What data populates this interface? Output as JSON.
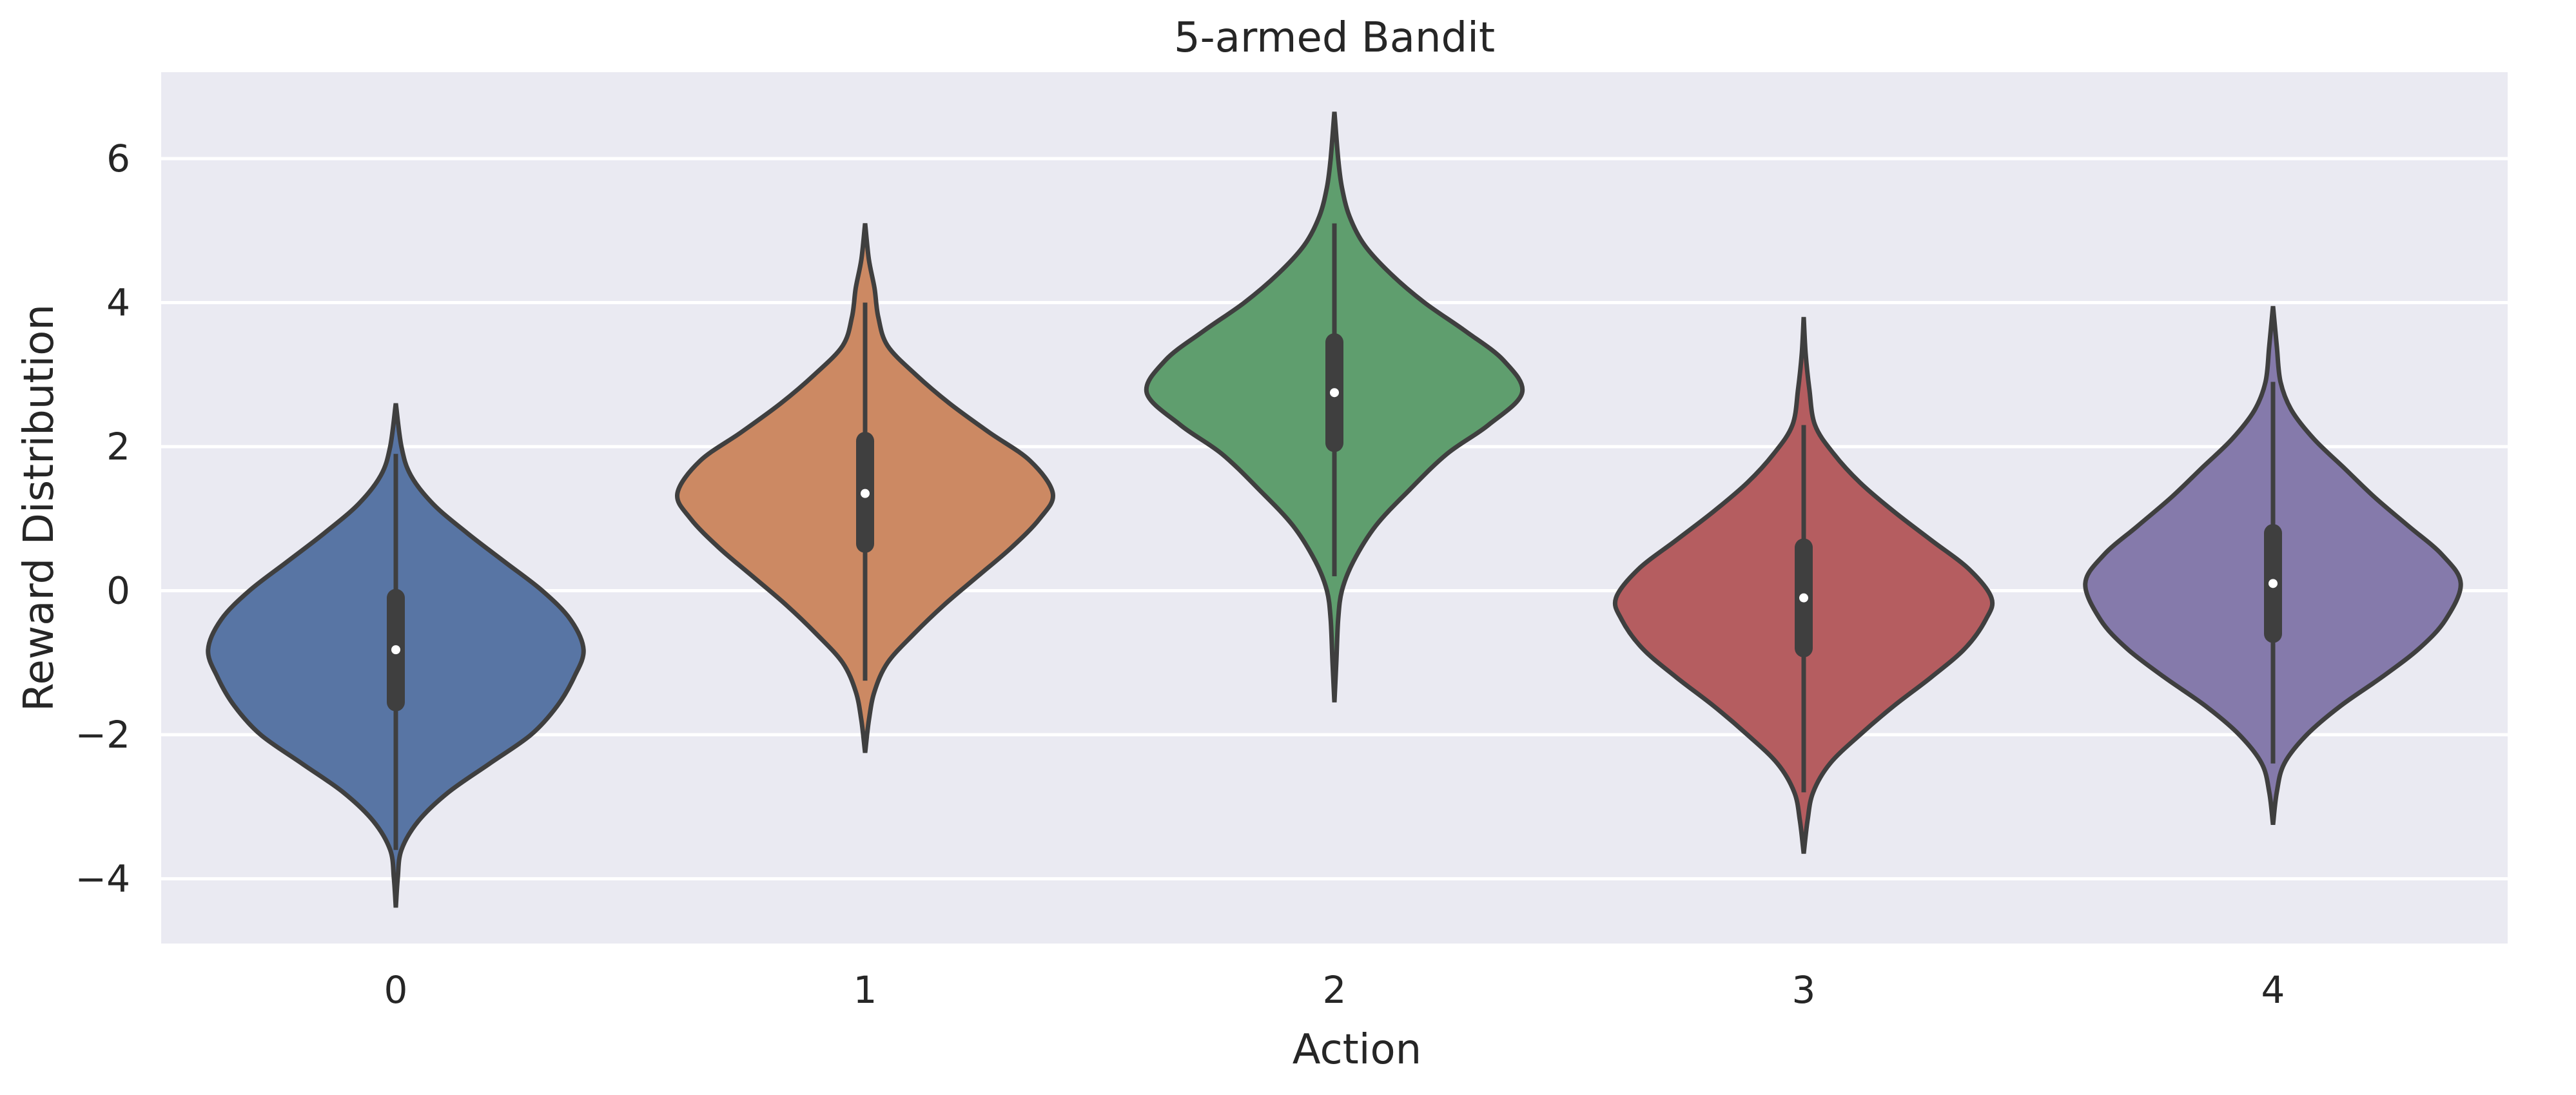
{
  "chart_data": {
    "type": "violin",
    "title": "5-armed Bandit",
    "xlabel": "Action",
    "ylabel": "Reward Distribution",
    "categories": [
      "0",
      "1",
      "2",
      "3",
      "4"
    ],
    "ylim": [
      -4.9,
      7.2
    ],
    "yticks": [
      -4,
      -2,
      0,
      2,
      4,
      6
    ],
    "ytick_labels": [
      "−4",
      "−2",
      "0",
      "2",
      "4",
      "6"
    ],
    "grid": true,
    "background_color": "#eaeaf2",
    "colors": [
      "#5875a4",
      "#cc8963",
      "#5f9e6e",
      "#b55d60",
      "#857aab"
    ],
    "series": [
      {
        "category": "0",
        "min": -4.4,
        "q1": -1.55,
        "median": -0.82,
        "q3": -0.1,
        "max": 2.6,
        "whisker_low": -3.6,
        "whisker_high": 1.9,
        "density": [
          [
            -4.4,
            0.0
          ],
          [
            -4.0,
            0.01
          ],
          [
            -3.6,
            0.03
          ],
          [
            -3.2,
            0.12
          ],
          [
            -2.8,
            0.28
          ],
          [
            -2.4,
            0.5
          ],
          [
            -2.0,
            0.72
          ],
          [
            -1.6,
            0.86
          ],
          [
            -1.2,
            0.95
          ],
          [
            -0.82,
            1.0
          ],
          [
            -0.4,
            0.93
          ],
          [
            0.0,
            0.78
          ],
          [
            0.4,
            0.58
          ],
          [
            0.8,
            0.38
          ],
          [
            1.2,
            0.2
          ],
          [
            1.6,
            0.08
          ],
          [
            2.0,
            0.03
          ],
          [
            2.6,
            0.0
          ]
        ]
      },
      {
        "category": "1",
        "min": -2.25,
        "q1": 0.65,
        "median": 1.35,
        "q3": 2.08,
        "max": 5.1,
        "whisker_low": -1.25,
        "whisker_high": 4.0,
        "density": [
          [
            -2.25,
            0.0
          ],
          [
            -1.8,
            0.02
          ],
          [
            -1.4,
            0.05
          ],
          [
            -1.0,
            0.12
          ],
          [
            -0.6,
            0.26
          ],
          [
            -0.2,
            0.42
          ],
          [
            0.2,
            0.6
          ],
          [
            0.6,
            0.78
          ],
          [
            1.0,
            0.93
          ],
          [
            1.35,
            1.0
          ],
          [
            1.8,
            0.88
          ],
          [
            2.2,
            0.66
          ],
          [
            2.6,
            0.45
          ],
          [
            3.0,
            0.27
          ],
          [
            3.4,
            0.12
          ],
          [
            3.8,
            0.07
          ],
          [
            4.2,
            0.05
          ],
          [
            4.6,
            0.02
          ],
          [
            5.1,
            0.0
          ]
        ]
      },
      {
        "category": "2",
        "min": -1.55,
        "q1": 2.05,
        "median": 2.75,
        "q3": 3.45,
        "max": 6.65,
        "whisker_low": 0.2,
        "whisker_high": 5.1,
        "density": [
          [
            -1.55,
            0.0
          ],
          [
            -1.0,
            0.01
          ],
          [
            -0.4,
            0.02
          ],
          [
            0.0,
            0.04
          ],
          [
            0.4,
            0.1
          ],
          [
            0.9,
            0.22
          ],
          [
            1.4,
            0.4
          ],
          [
            1.9,
            0.6
          ],
          [
            2.3,
            0.82
          ],
          [
            2.75,
            1.0
          ],
          [
            3.2,
            0.9
          ],
          [
            3.6,
            0.7
          ],
          [
            4.0,
            0.48
          ],
          [
            4.4,
            0.3
          ],
          [
            4.8,
            0.16
          ],
          [
            5.2,
            0.08
          ],
          [
            5.6,
            0.04
          ],
          [
            6.0,
            0.02
          ],
          [
            6.65,
            0.0
          ]
        ]
      },
      {
        "category": "3",
        "min": -3.65,
        "q1": -0.8,
        "median": -0.1,
        "q3": 0.6,
        "max": 3.8,
        "whisker_low": -2.8,
        "whisker_high": 2.3,
        "density": [
          [
            -3.65,
            0.0
          ],
          [
            -3.2,
            0.02
          ],
          [
            -2.8,
            0.05
          ],
          [
            -2.4,
            0.14
          ],
          [
            -2.0,
            0.3
          ],
          [
            -1.6,
            0.48
          ],
          [
            -1.2,
            0.68
          ],
          [
            -0.8,
            0.86
          ],
          [
            -0.4,
            0.97
          ],
          [
            -0.1,
            1.0
          ],
          [
            0.3,
            0.88
          ],
          [
            0.7,
            0.68
          ],
          [
            1.1,
            0.48
          ],
          [
            1.5,
            0.3
          ],
          [
            1.9,
            0.16
          ],
          [
            2.3,
            0.06
          ],
          [
            2.8,
            0.03
          ],
          [
            3.3,
            0.01
          ],
          [
            3.8,
            0.0
          ]
        ]
      },
      {
        "category": "4",
        "min": -3.25,
        "q1": -0.6,
        "median": 0.1,
        "q3": 0.8,
        "max": 3.95,
        "whisker_low": -2.4,
        "whisker_high": 2.9,
        "density": [
          [
            -3.25,
            0.0
          ],
          [
            -2.8,
            0.02
          ],
          [
            -2.4,
            0.06
          ],
          [
            -2.0,
            0.18
          ],
          [
            -1.6,
            0.36
          ],
          [
            -1.2,
            0.58
          ],
          [
            -0.8,
            0.78
          ],
          [
            -0.4,
            0.92
          ],
          [
            0.1,
            1.0
          ],
          [
            0.5,
            0.9
          ],
          [
            0.9,
            0.72
          ],
          [
            1.3,
            0.54
          ],
          [
            1.7,
            0.38
          ],
          [
            2.1,
            0.22
          ],
          [
            2.5,
            0.1
          ],
          [
            2.9,
            0.04
          ],
          [
            3.4,
            0.02
          ],
          [
            3.95,
            0.0
          ]
        ]
      }
    ]
  }
}
